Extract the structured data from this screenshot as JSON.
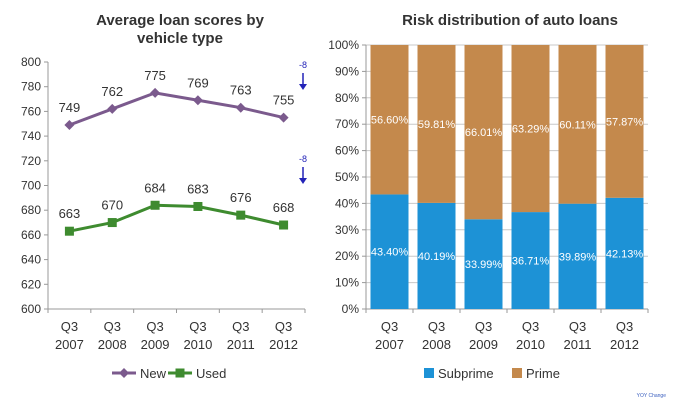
{
  "chart_data": [
    {
      "type": "line",
      "title_line1": "Average loan scores by",
      "title_line2": "vehicle type",
      "categories": [
        "Q3\n2007",
        "Q3\n2008",
        "Q3\n2009",
        "Q3\n2010",
        "Q3\n2011",
        "Q3\n2012"
      ],
      "ylim": [
        600,
        800
      ],
      "yticks": [
        600,
        620,
        640,
        660,
        680,
        700,
        720,
        740,
        760,
        780,
        800
      ],
      "grid": false,
      "legend": "bottom",
      "series": [
        {
          "name": "New",
          "values": [
            749,
            762,
            775,
            769,
            763,
            755
          ],
          "color": "#7b5a8d",
          "marker": "diamond",
          "change": "-8"
        },
        {
          "name": "Used",
          "values": [
            663,
            670,
            684,
            683,
            676,
            668
          ],
          "color": "#3e8b2f",
          "marker": "square",
          "change": "-8"
        }
      ]
    },
    {
      "type": "bar",
      "stacked": true,
      "title": "Risk distribution of auto loans",
      "categories": [
        "Q3\n2007",
        "Q3\n2008",
        "Q3\n2009",
        "Q3\n2010",
        "Q3\n2011",
        "Q3\n2012"
      ],
      "ylim": [
        0,
        100
      ],
      "yticks": [
        "0%",
        "10%",
        "20%",
        "30%",
        "40%",
        "50%",
        "60%",
        "70%",
        "80%",
        "90%",
        "100%"
      ],
      "grid": true,
      "legend": "bottom",
      "series": [
        {
          "name": "Subprime",
          "values": [
            43.4,
            40.19,
            33.99,
            36.71,
            39.89,
            42.13
          ],
          "labels": [
            "43.40%",
            "40.19%",
            "33.99%",
            "36.71%",
            "39.89%",
            "42.13%"
          ],
          "color": "#1d92d6"
        },
        {
          "name": "Prime",
          "values": [
            56.6,
            59.81,
            66.01,
            63.29,
            60.11,
            57.87
          ],
          "labels": [
            "56.60%",
            "59.81%",
            "66.01%",
            "63.29%",
            "60.11%",
            "57.87%"
          ],
          "color": "#c4894c"
        }
      ]
    }
  ],
  "footnote": "YOY Change"
}
